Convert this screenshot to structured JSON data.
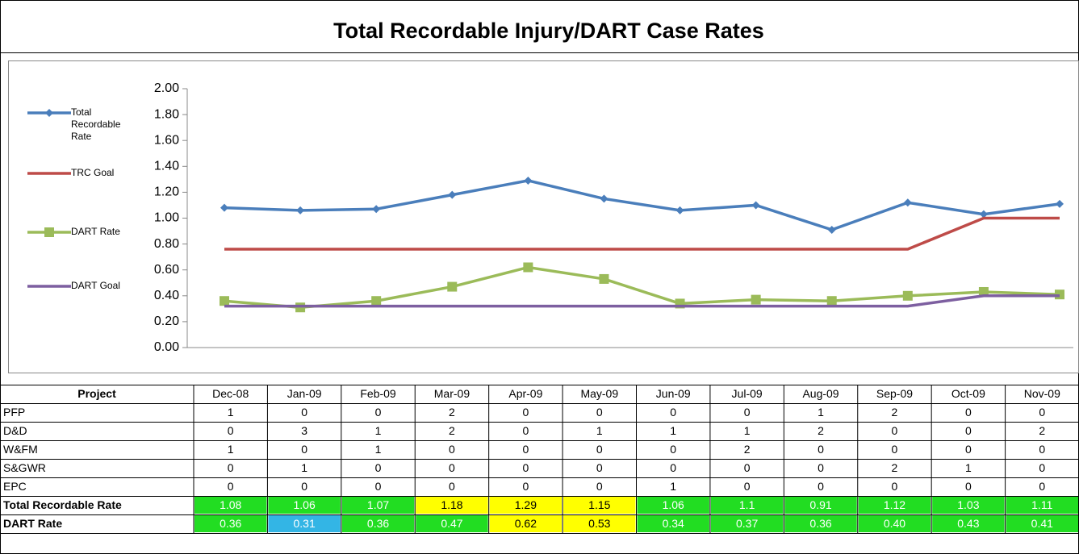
{
  "chart_data": {
    "type": "line",
    "title": "Total Recordable Injury/DART Case Rates",
    "categories": [
      "Dec-08",
      "Jan-09",
      "Feb-09",
      "Mar-09",
      "Apr-09",
      "May-09",
      "Jun-09",
      "Jul-09",
      "Aug-09",
      "Sep-09",
      "Oct-09",
      "Nov-09"
    ],
    "series": [
      {
        "name": "Total Recordable Rate",
        "color": "#4a7ebb",
        "marker": "diamond",
        "values": [
          1.08,
          1.06,
          1.07,
          1.18,
          1.29,
          1.15,
          1.06,
          1.1,
          0.91,
          1.12,
          1.03,
          1.11
        ]
      },
      {
        "name": "TRC Goal",
        "color": "#be4b48",
        "marker": "none",
        "values": [
          0.76,
          0.76,
          0.76,
          0.76,
          0.76,
          0.76,
          0.76,
          0.76,
          0.76,
          0.76,
          1.0,
          1.0
        ]
      },
      {
        "name": "DART Rate",
        "color": "#9bbb59",
        "marker": "square",
        "values": [
          0.36,
          0.31,
          0.36,
          0.47,
          0.62,
          0.53,
          0.34,
          0.37,
          0.36,
          0.4,
          0.43,
          0.41
        ]
      },
      {
        "name": "DART Goal",
        "color": "#7d5fa0",
        "marker": "none",
        "values": [
          0.32,
          0.32,
          0.32,
          0.32,
          0.32,
          0.32,
          0.32,
          0.32,
          0.32,
          0.32,
          0.4,
          0.4
        ]
      }
    ],
    "ylim": [
      0,
      2
    ],
    "yticks": [
      {
        "value": 0,
        "label": "0.00"
      },
      {
        "value": 0.2,
        "label": "0.20"
      },
      {
        "value": 0.4,
        "label": "0.40"
      },
      {
        "value": 0.6,
        "label": "0.60"
      },
      {
        "value": 0.8,
        "label": "0.80"
      },
      {
        "value": 1.0,
        "label": "1.00"
      },
      {
        "value": 1.2,
        "label": "1.20"
      },
      {
        "value": 1.4,
        "label": "1.40"
      },
      {
        "value": 1.6,
        "label": "1.60"
      },
      {
        "value": 1.8,
        "label": "1.80"
      },
      {
        "value": 2.0,
        "label": "2.00"
      }
    ],
    "legend": "left"
  },
  "table": {
    "header": "Project",
    "rows": [
      {
        "label": "PFP",
        "cells": [
          "1",
          "0",
          "0",
          "2",
          "0",
          "0",
          "0",
          "0",
          "1",
          "2",
          "0",
          "0"
        ]
      },
      {
        "label": "D&D",
        "cells": [
          "0",
          "3",
          "1",
          "2",
          "0",
          "1",
          "1",
          "1",
          "2",
          "0",
          "0",
          "2"
        ]
      },
      {
        "label": "W&FM",
        "cells": [
          "1",
          "0",
          "1",
          "0",
          "0",
          "0",
          "0",
          "2",
          "0",
          "0",
          "0",
          "0"
        ]
      },
      {
        "label": "S&GWR",
        "cells": [
          "0",
          "1",
          "0",
          "0",
          "0",
          "0",
          "0",
          "0",
          "0",
          "2",
          "1",
          "0"
        ]
      },
      {
        "label": "EPC",
        "cells": [
          "0",
          "0",
          "0",
          "0",
          "0",
          "0",
          "1",
          "0",
          "0",
          "0",
          "0",
          "0"
        ]
      },
      {
        "label": "Total Recordable Rate",
        "cells": [
          "1.08",
          "1.06",
          "1.07",
          "1.18",
          "1.29",
          "1.15",
          "1.06",
          "1.1",
          "0.91",
          "1.12",
          "1.03",
          "1.11"
        ],
        "colors": [
          "#22dd22",
          "#22dd22",
          "#22dd22",
          "#ffff00",
          "#ffff00",
          "#ffff00",
          "#22dd22",
          "#22dd22",
          "#22dd22",
          "#22dd22",
          "#22dd22",
          "#22dd22"
        ]
      },
      {
        "label": "DART Rate",
        "cells": [
          "0.36",
          "0.31",
          "0.36",
          "0.47",
          "0.62",
          "0.53",
          "0.34",
          "0.37",
          "0.36",
          "0.40",
          "0.43",
          "0.41"
        ],
        "colors": [
          "#22dd22",
          "#33b5e5",
          "#22dd22",
          "#22dd22",
          "#ffff00",
          "#ffff00",
          "#22dd22",
          "#22dd22",
          "#22dd22",
          "#22dd22",
          "#22dd22",
          "#22dd22"
        ]
      }
    ]
  }
}
